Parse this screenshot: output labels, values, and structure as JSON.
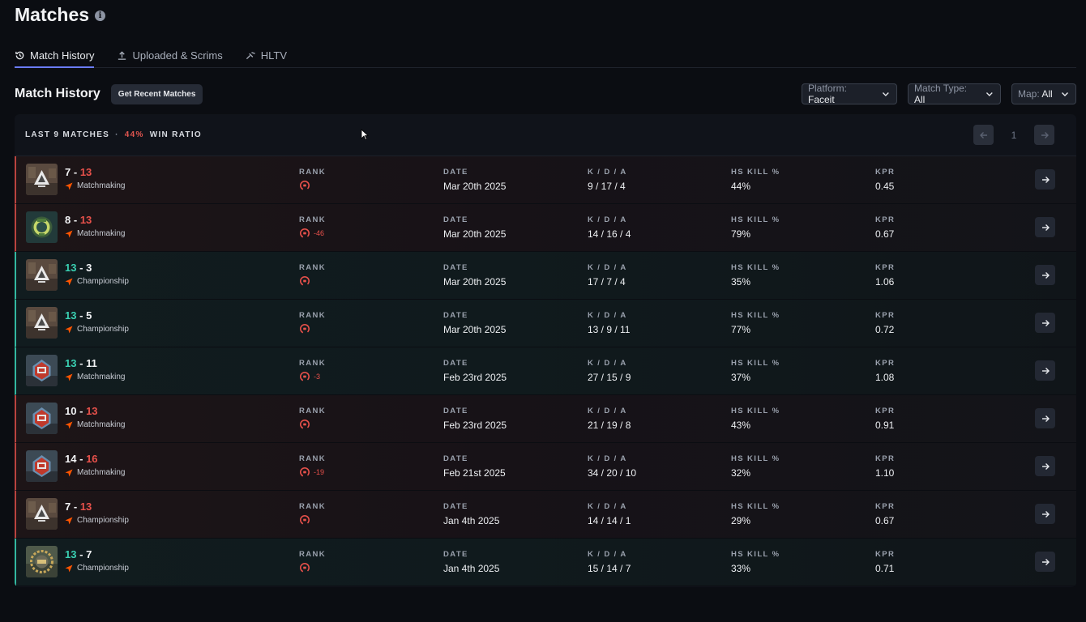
{
  "page": {
    "title": "Matches"
  },
  "tabs": [
    {
      "label": "Match History",
      "icon": "history-icon",
      "active": true
    },
    {
      "label": "Uploaded & Scrims",
      "icon": "upload-icon",
      "active": false
    },
    {
      "label": "HLTV",
      "icon": "hltv-icon",
      "active": false
    }
  ],
  "section": {
    "title": "Match History",
    "recent_button": "Get Recent Matches",
    "filters": {
      "platform": {
        "label": "Platform:",
        "value": "Faceit"
      },
      "match_type": {
        "label": "Match Type:",
        "value": "All"
      },
      "map": {
        "label": "Map:",
        "value": "All"
      }
    }
  },
  "summary": {
    "last_matches": "LAST 9 MATCHES",
    "separator": "·",
    "win_pct": "44%",
    "win_ratio_label": "WIN RATIO",
    "page": "1"
  },
  "columns": {
    "rank": "RANK",
    "date": "DATE",
    "kda": "K / D / A",
    "hs": "HS KILL %",
    "kpr": "KPR"
  },
  "colors": {
    "win": "#3ad0b2",
    "loss": "#e8514b",
    "accent": "#6b7cff"
  },
  "matches": [
    {
      "result": "loss",
      "map": "mirage",
      "score_a": "7",
      "dash": "-",
      "score_b": "13",
      "mode": "Matchmaking",
      "rank_change": "",
      "date": "Mar 20th 2025",
      "kda": "9 / 17 / 4",
      "hs": "44%",
      "kpr": "0.45"
    },
    {
      "result": "loss",
      "map": "ancient",
      "score_a": "8",
      "dash": "-",
      "score_b": "13",
      "mode": "Matchmaking",
      "rank_change": "-46",
      "date": "Mar 20th 2025",
      "kda": "14 / 16 / 4",
      "hs": "79%",
      "kpr": "0.67"
    },
    {
      "result": "win",
      "map": "mirage",
      "score_a": "13",
      "dash": "-",
      "score_b": "3",
      "mode": "Championship",
      "rank_change": "",
      "date": "Mar 20th 2025",
      "kda": "17 / 7 / 4",
      "hs": "35%",
      "kpr": "1.06"
    },
    {
      "result": "win",
      "map": "mirage",
      "score_a": "13",
      "dash": "-",
      "score_b": "5",
      "mode": "Championship",
      "rank_change": "",
      "date": "Mar 20th 2025",
      "kda": "13 / 9 / 11",
      "hs": "77%",
      "kpr": "0.72"
    },
    {
      "result": "win",
      "map": "nuke",
      "score_a": "13",
      "dash": "-",
      "score_b": "11",
      "mode": "Matchmaking",
      "rank_change": "-3",
      "date": "Feb 23rd 2025",
      "kda": "27 / 15 / 9",
      "hs": "37%",
      "kpr": "1.08"
    },
    {
      "result": "loss",
      "map": "nuke",
      "score_a": "10",
      "dash": "-",
      "score_b": "13",
      "mode": "Matchmaking",
      "rank_change": "",
      "date": "Feb 23rd 2025",
      "kda": "21 / 19 / 8",
      "hs": "43%",
      "kpr": "0.91"
    },
    {
      "result": "loss",
      "map": "nuke",
      "score_a": "14",
      "dash": "-",
      "score_b": "16",
      "mode": "Matchmaking",
      "rank_change": "-19",
      "date": "Feb 21st 2025",
      "kda": "34 / 20 / 10",
      "hs": "32%",
      "kpr": "1.10"
    },
    {
      "result": "loss",
      "map": "mirage",
      "score_a": "7",
      "dash": "-",
      "score_b": "13",
      "mode": "Championship",
      "rank_change": "",
      "date": "Jan 4th 2025",
      "kda": "14 / 14 / 1",
      "hs": "29%",
      "kpr": "0.67"
    },
    {
      "result": "win",
      "map": "dust",
      "score_a": "13",
      "dash": "-",
      "score_b": "7",
      "mode": "Championship",
      "rank_change": "",
      "date": "Jan 4th 2025",
      "kda": "15 / 14 / 7",
      "hs": "33%",
      "kpr": "0.71"
    }
  ]
}
